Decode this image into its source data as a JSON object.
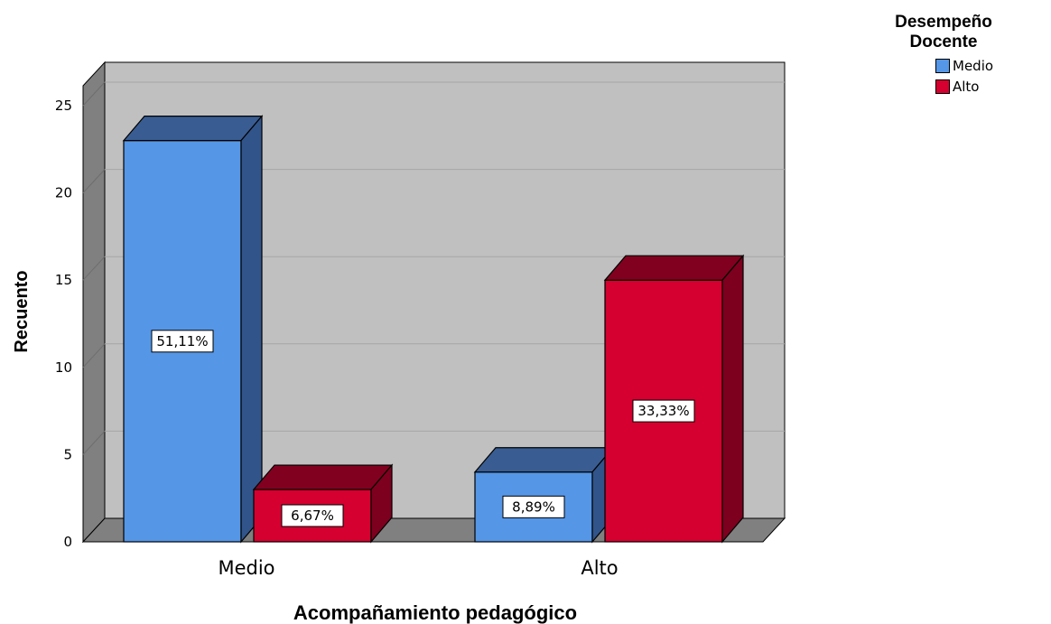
{
  "chart_data": {
    "type": "bar",
    "style": "3d-clustered",
    "xlabel": "Acompañamiento pedagógico",
    "ylabel": "Recuento",
    "categories": [
      "Medio",
      "Alto"
    ],
    "ylim": [
      0,
      25
    ],
    "yticks": [
      "0",
      "5",
      "10",
      "15",
      "20",
      "25"
    ],
    "grid": true,
    "legend_position": "top-right",
    "legend_title": "Desempeño Docente",
    "series": [
      {
        "name": "Medio",
        "color": "#5596E6",
        "values": [
          23,
          4
        ],
        "labels": [
          "51,11%",
          "8,89%"
        ]
      },
      {
        "name": "Alto",
        "color": "#D5002F",
        "values": [
          3,
          15
        ],
        "labels": [
          "6,67%",
          "33,33%"
        ]
      }
    ]
  },
  "legend": {
    "title": "Desempeño Docente",
    "items": [
      {
        "label": "Medio",
        "color": "#5596E6"
      },
      {
        "label": "Alto",
        "color": "#D5002F"
      }
    ]
  },
  "colors": {
    "plot_background": "#C0C0C0",
    "wall_side": "#808080",
    "floor": "#808080",
    "medio_top": "#395D92",
    "medio_side": "#31548A",
    "alto_top": "#82001F",
    "alto_side": "#7D001E"
  }
}
